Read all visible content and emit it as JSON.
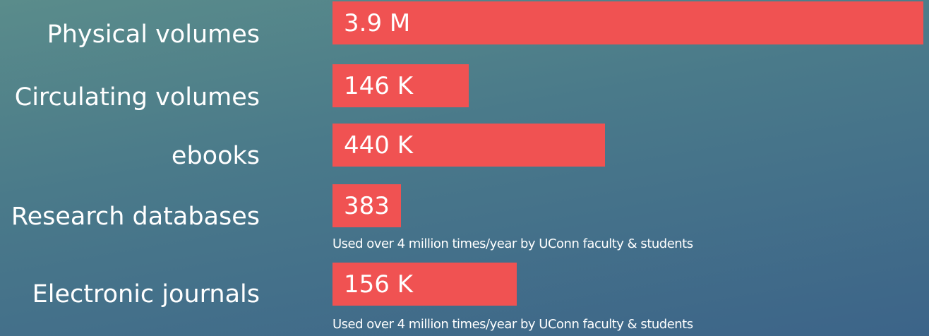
{
  "items": [
    {
      "label": "Physical volumes",
      "value": "3.9 M"
    },
    {
      "label": "Circulating volumes",
      "value": "146 K"
    },
    {
      "label": "ebooks",
      "value": "440 K"
    },
    {
      "label": "Research databases",
      "value": "383",
      "note": "Used over 4 million times/year by UConn faculty & students"
    },
    {
      "label": "Electronic journals",
      "value": "156 K",
      "note": "Used over 4 million times/year by UConn faculty & students"
    }
  ]
}
